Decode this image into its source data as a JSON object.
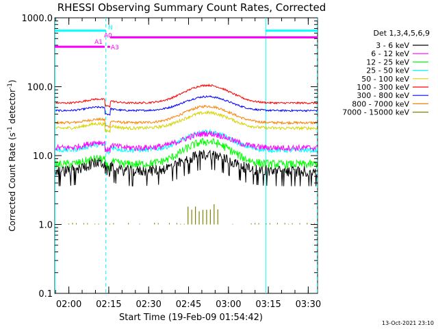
{
  "chart_data": {
    "type": "line",
    "title": "RHESSI Observing Summary Count Rates, Corrected",
    "ylabel": "Corrected Count Rate (s⁻¹ detector⁻¹)",
    "ylabel_parts": {
      "prefix": "Corrected Count Rate (s",
      "exp1": "-1",
      "mid": " detector",
      "exp2": "-1",
      "suffix": ")"
    },
    "xlabel": "Start Time (19-Feb-09 01:54:42)",
    "y_scale": "log",
    "ylim": [
      0.1,
      1000
    ],
    "y_ticks": [
      {
        "value": 0.1,
        "label": "0.1"
      },
      {
        "value": 1,
        "label": "1.0"
      },
      {
        "value": 10,
        "label": "10.0"
      },
      {
        "value": 100,
        "label": "100.0"
      },
      {
        "value": 1000,
        "label": "1000.0"
      }
    ],
    "xlim_min": [
      114.7,
      213.5
    ],
    "x_ticks": [
      {
        "value": 120,
        "label": "02:00"
      },
      {
        "value": 135,
        "label": "02:15"
      },
      {
        "value": 150,
        "label": "02:30"
      },
      {
        "value": 165,
        "label": "02:45"
      },
      {
        "value": 180,
        "label": "03:00"
      },
      {
        "value": 195,
        "label": "03:15"
      },
      {
        "value": 210,
        "label": "03:30"
      }
    ],
    "legend": {
      "position": "right",
      "header": "Det 1,3,4,5,6,9",
      "entries": [
        {
          "label": "3 - 6 keV",
          "color": "#000000"
        },
        {
          "label": "6 - 12 keV",
          "color": "#ff00ff"
        },
        {
          "label": "12 - 25 keV",
          "color": "#00ff00"
        },
        {
          "label": "25 - 50 keV",
          "color": "#00ffff"
        },
        {
          "label": "50 - 100 keV",
          "color": "#d4d400"
        },
        {
          "label": "100 - 300 keV",
          "color": "#ff0000"
        },
        {
          "label": "300 - 800 keV",
          "color": "#0000ff"
        },
        {
          "label": "800 - 7000 keV",
          "color": "#ff8000"
        },
        {
          "label": "7000 - 15000 keV",
          "color": "#808000"
        }
      ]
    },
    "series": [
      {
        "name": "3 - 6 keV",
        "color": "#000000",
        "base": 6.0,
        "peak": 10.5,
        "hump": 1.8,
        "noise": 0.18,
        "dropouts": true
      },
      {
        "name": "6 - 12 keV",
        "color": "#ff00ff",
        "base": 13.0,
        "peak": 21.0,
        "hump": 1.5,
        "noise": 0.1
      },
      {
        "name": "12 - 25 keV",
        "color": "#00ff00",
        "base": 7.5,
        "peak": 16.0,
        "hump": 1.5,
        "noise": 0.14
      },
      {
        "name": "25 - 50 keV",
        "color": "#00ffff",
        "base": 12.0,
        "peak": 22.0,
        "hump": 1.5,
        "noise": 0.08
      },
      {
        "name": "50 - 100 keV",
        "color": "#d4d400",
        "base": 25.0,
        "peak": 42.0,
        "hump": 1.4,
        "noise": 0.05
      },
      {
        "name": "100 - 300 keV",
        "color": "#ff0000",
        "base": 58.0,
        "peak": 105.0,
        "hump": 1.35,
        "noise": 0.03
      },
      {
        "name": "300 - 800 keV",
        "color": "#0000ff",
        "base": 45.0,
        "peak": 72.0,
        "hump": 1.3,
        "noise": 0.03
      },
      {
        "name": "800 - 7000 keV",
        "color": "#ff8000",
        "base": 30.0,
        "peak": 52.0,
        "hump": 1.3,
        "noise": 0.04
      },
      {
        "name": "7000 - 15000 keV",
        "color": "#808000",
        "base": 1.0,
        "peak": 2.0,
        "sparse": true
      }
    ],
    "flag_bars": [
      {
        "label": "N",
        "color": "#00ffff",
        "segments": [
          [
            114.7,
            134.0
          ],
          [
            194.0,
            213.5
          ]
        ],
        "value": 650
      },
      {
        "label": "A0",
        "color": "#ff00ff",
        "segments": [
          [
            135.5,
            213.5
          ]
        ],
        "value": 520
      },
      {
        "label": "A1",
        "color": "#ff00ff",
        "segments": [
          [
            114.7,
            133.5
          ]
        ],
        "value": 380
      },
      {
        "label": "A3",
        "color": "#ff00ff",
        "segments": [
          [
            134.5,
            135.5
          ]
        ],
        "value": 380
      }
    ],
    "vlines": [
      {
        "x": 114.8,
        "style": "solid"
      },
      {
        "x": 133.9,
        "style": "dashed"
      },
      {
        "x": 194.0,
        "style": "solid"
      },
      {
        "x": 213.4,
        "style": "dashed"
      }
    ],
    "vline_color": "#00ffff"
  },
  "footer": {
    "timestamp": "13-Oct-2021 23:10"
  }
}
